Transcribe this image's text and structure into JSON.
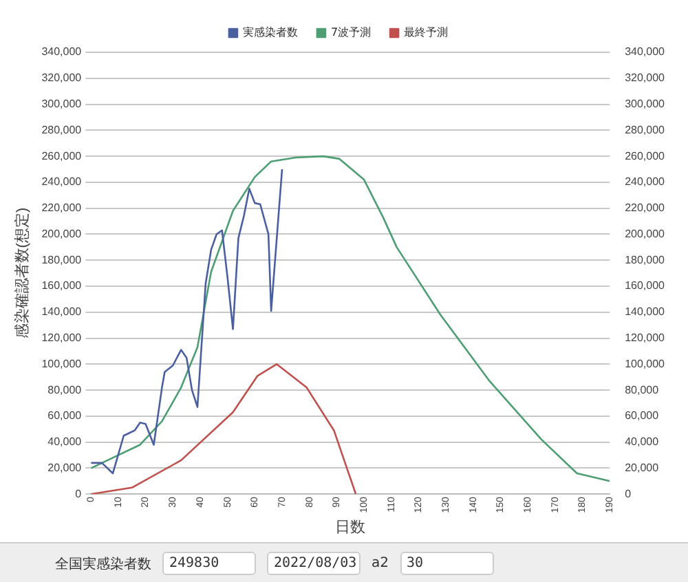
{
  "chart_data": {
    "type": "line",
    "ylabel": "感染確認者数(想定)",
    "xlabel": "日数",
    "xlim": [
      0,
      190
    ],
    "xticks": [
      0,
      10,
      20,
      30,
      40,
      50,
      60,
      70,
      80,
      90,
      100,
      110,
      120,
      130,
      140,
      150,
      160,
      170,
      180,
      190
    ],
    "ylim": [
      0,
      340000
    ],
    "yticks": [
      {
        "value": 0,
        "label": "0"
      },
      {
        "value": 20000,
        "label": "20,000"
      },
      {
        "value": 40000,
        "label": "40,000"
      },
      {
        "value": 60000,
        "label": "60,000"
      },
      {
        "value": 80000,
        "label": "80,000"
      },
      {
        "value": 100000,
        "label": "100,000"
      },
      {
        "value": 120000,
        "label": "120,000"
      },
      {
        "value": 140000,
        "label": "140,000"
      },
      {
        "value": 160000,
        "label": "160,000"
      },
      {
        "value": 180000,
        "label": "180,000"
      },
      {
        "value": 200000,
        "label": "200,000"
      },
      {
        "value": 220000,
        "label": "220,000"
      },
      {
        "value": 240000,
        "label": "240,000"
      },
      {
        "value": 260000,
        "label": "260,000"
      },
      {
        "value": 280000,
        "label": "280,000"
      },
      {
        "value": 300000,
        "label": "300,000"
      },
      {
        "value": 320000,
        "label": "320,000"
      },
      {
        "value": 340000,
        "label": "340,000"
      }
    ],
    "y2lim": [
      0,
      340000
    ],
    "y2ticks": [
      {
        "value": 0,
        "label": "0"
      },
      {
        "value": 20000,
        "label": "20,000"
      },
      {
        "value": 40000,
        "label": "40,000"
      },
      {
        "value": 60000,
        "label": "60,000"
      },
      {
        "value": 80000,
        "label": "80,000"
      },
      {
        "value": 100000,
        "label": "100,000"
      },
      {
        "value": 120000,
        "label": "120,000"
      },
      {
        "value": 140000,
        "label": "140,000"
      },
      {
        "value": 160000,
        "label": "160,000"
      },
      {
        "value": 180000,
        "label": "180,000"
      },
      {
        "value": 200000,
        "label": "200,000"
      },
      {
        "value": 220000,
        "label": "220,000"
      },
      {
        "value": 240000,
        "label": "240,000"
      },
      {
        "value": 260000,
        "label": "260,000"
      },
      {
        "value": 280000,
        "label": "280,000"
      },
      {
        "value": 300000,
        "label": "300,000"
      },
      {
        "value": 320000,
        "label": "320,000"
      },
      {
        "value": 340000,
        "label": "340,000"
      }
    ],
    "grid": "y",
    "legend": "top",
    "marker": "none",
    "line_style": "solid",
    "series": [
      {
        "name": "実感染者数",
        "color": "#4a5fa0",
        "x": [
          0,
          4,
          8,
          12,
          14,
          16,
          18,
          20,
          23,
          26,
          27,
          30,
          33,
          35,
          37,
          39,
          42,
          44,
          46,
          48,
          50,
          52,
          54,
          56,
          58,
          60,
          62,
          65,
          66,
          70
        ],
        "values": [
          24000,
          24000,
          16000,
          45000,
          47000,
          49000,
          55000,
          54000,
          38000,
          82000,
          94000,
          99000,
          111000,
          105000,
          80000,
          67000,
          162000,
          188000,
          200000,
          203000,
          167000,
          127000,
          197000,
          214000,
          235000,
          224000,
          223000,
          200000,
          141000,
          250000
        ]
      },
      {
        "name": "7波予測",
        "color": "#4e9e74",
        "x": [
          0,
          8,
          18,
          26,
          33,
          39,
          44,
          52,
          60,
          66,
          75,
          85,
          91,
          100,
          107,
          112,
          128,
          146,
          165,
          178,
          190
        ],
        "values": [
          20000,
          28000,
          38000,
          56000,
          82000,
          113000,
          171000,
          218000,
          244000,
          256000,
          259000,
          260000,
          258000,
          242000,
          213000,
          190000,
          138000,
          87000,
          42000,
          16000,
          10000
        ]
      },
      {
        "name": "最終予測",
        "color": "#c0504d",
        "x": [
          0,
          15,
          33,
          52,
          61,
          68,
          79,
          89,
          97
        ],
        "values": [
          0,
          5000,
          26000,
          63000,
          91000,
          100000,
          82000,
          49000,
          0
        ]
      }
    ],
    "annotations": [
      "全国実感染者数",
      "249830",
      "2022/08/03",
      "a2",
      "30"
    ]
  }
}
